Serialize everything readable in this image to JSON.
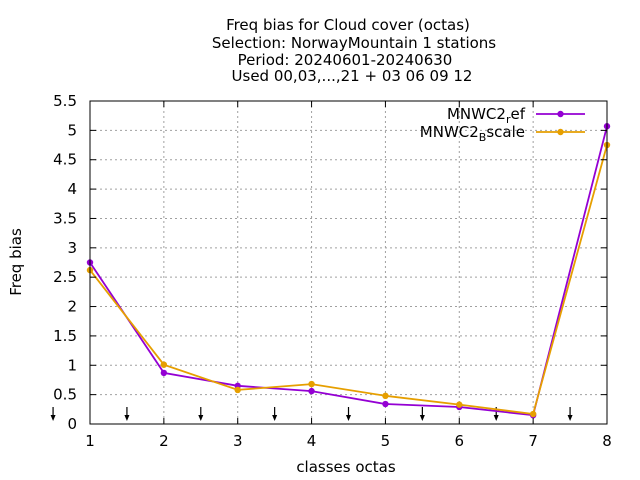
{
  "chart_data": {
    "type": "line",
    "title_lines": [
      "Freq bias  for Cloud cover (octas)",
      "Selection: NorwayMountain      1 stations",
      "Period: 20240601-20240630",
      "Used 00,03,...,21 + 03 06 09 12"
    ],
    "xlabel": "classes octas",
    "ylabel": "Freq bias",
    "xlim": [
      1,
      8
    ],
    "ylim": [
      0,
      5.5
    ],
    "xticks": [
      "1",
      "2",
      "3",
      "4",
      "5",
      "6",
      "7",
      "8"
    ],
    "yticks": [
      "0",
      "0.5",
      "1",
      "1.5",
      "2",
      "2.5",
      "3",
      "3.5",
      "4",
      "4.5",
      "5",
      "5.5"
    ],
    "grid": true,
    "legend_position": "top-right",
    "x": [
      1,
      2,
      3,
      4,
      5,
      6,
      7,
      8
    ],
    "series": [
      {
        "name": "MNWC2_ref",
        "legend_main": "MNWC2",
        "legend_sub": "r",
        "legend_rest": "ef",
        "color": "#9400d3",
        "values": [
          2.75,
          0.87,
          0.65,
          0.56,
          0.34,
          0.29,
          0.15,
          5.07
        ]
      },
      {
        "name": "MNWC2_Bscale",
        "legend_main": "MNWC2",
        "legend_sub": "B",
        "legend_rest": "scale",
        "color": "#e69f00",
        "values": [
          2.62,
          1.01,
          0.58,
          0.68,
          0.48,
          0.33,
          0.17,
          4.75
        ]
      }
    ],
    "arrow_markers_x": [
      0.5,
      1.5,
      2.5,
      3.5,
      4.5,
      5.5,
      6.5,
      7.5
    ]
  }
}
